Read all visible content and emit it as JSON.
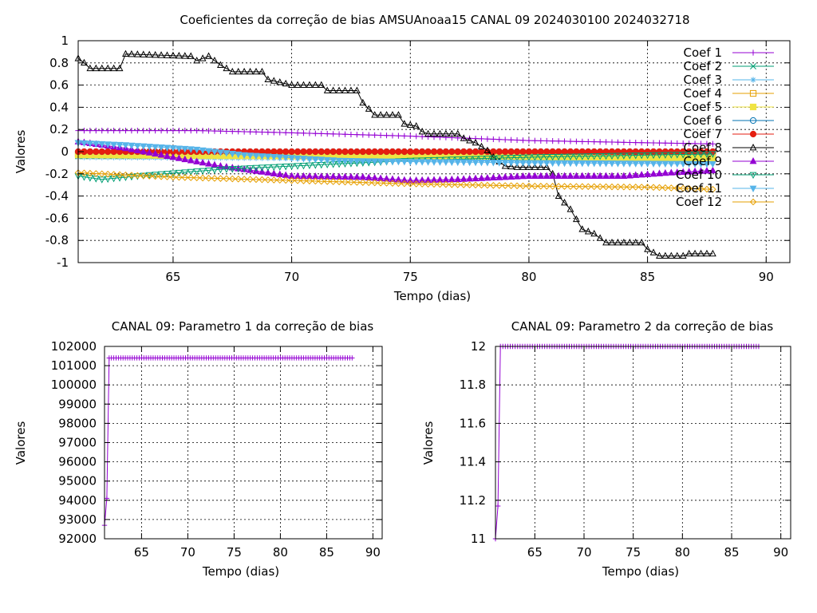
{
  "chart_data": [
    {
      "type": "line",
      "title": "Coeficientes da correção de bias AMSUAnoaa15 CANAL 09 2024030100 2024032718",
      "xlabel": "Tempo (dias)",
      "ylabel": "Valores",
      "xlim": [
        61,
        91
      ],
      "ylim": [
        -1,
        1
      ],
      "xticks": [
        "65",
        "70",
        "75",
        "80",
        "85",
        "90"
      ],
      "yticks": [
        "-1",
        "-0.8",
        "-0.6",
        "-0.4",
        "-0.2",
        "0",
        "0.2",
        "0.4",
        "0.6",
        "0.8",
        "1"
      ],
      "grid": true,
      "legend_position": "top-right",
      "x_start": 61,
      "x_end": 87.75,
      "x_step": 0.25,
      "series": [
        {
          "name": "Coef 1",
          "color": "#9400d3",
          "marker": "plus",
          "keypoints": [
            [
              61,
              0.19
            ],
            [
              66,
              0.19
            ],
            [
              70,
              0.17
            ],
            [
              75,
              0.14
            ],
            [
              80,
              0.1
            ],
            [
              85,
              0.08
            ],
            [
              87.75,
              0.07
            ]
          ]
        },
        {
          "name": "Coef 2",
          "color": "#009e73",
          "marker": "cross",
          "keypoints": [
            [
              61,
              -0.04
            ],
            [
              75,
              -0.04
            ],
            [
              80,
              -0.03
            ],
            [
              87.75,
              -0.03
            ]
          ]
        },
        {
          "name": "Coef 3",
          "color": "#56b4e9",
          "marker": "star",
          "keypoints": [
            [
              61,
              -0.05
            ],
            [
              70,
              -0.06
            ],
            [
              80,
              -0.07
            ],
            [
              87.75,
              -0.08
            ]
          ]
        },
        {
          "name": "Coef 4",
          "color": "#e69f00",
          "marker": "square-open",
          "keypoints": [
            [
              61,
              -0.02
            ],
            [
              80,
              -0.03
            ],
            [
              87.75,
              -0.04
            ]
          ]
        },
        {
          "name": "Coef 5",
          "color": "#f0e442",
          "marker": "square-filled",
          "keypoints": [
            [
              61,
              -0.03
            ],
            [
              70,
              -0.04
            ],
            [
              80,
              -0.05
            ],
            [
              87.75,
              -0.06
            ]
          ]
        },
        {
          "name": "Coef 6",
          "color": "#0072b2",
          "marker": "circle-open",
          "keypoints": [
            [
              61,
              0.0
            ],
            [
              87.75,
              0.0
            ]
          ]
        },
        {
          "name": "Coef 7",
          "color": "#e51e10",
          "marker": "circle-filled",
          "keypoints": [
            [
              61,
              0.0
            ],
            [
              87.75,
              0.0
            ]
          ]
        },
        {
          "name": "Coef 8",
          "color": "#000000",
          "marker": "triangle-open",
          "keypoints": [
            [
              61,
              0.84
            ],
            [
              61.25,
              0.8
            ],
            [
              61.5,
              0.75
            ],
            [
              62.75,
              0.75
            ],
            [
              63,
              0.88
            ],
            [
              65.75,
              0.86
            ],
            [
              66,
              0.82
            ],
            [
              66.5,
              0.86
            ],
            [
              67,
              0.78
            ],
            [
              67.5,
              0.72
            ],
            [
              68.75,
              0.72
            ],
            [
              69,
              0.65
            ],
            [
              70,
              0.6
            ],
            [
              71.25,
              0.6
            ],
            [
              71.5,
              0.55
            ],
            [
              72.75,
              0.55
            ],
            [
              73,
              0.44
            ],
            [
              73.5,
              0.33
            ],
            [
              74.5,
              0.33
            ],
            [
              74.75,
              0.25
            ],
            [
              75.25,
              0.23
            ],
            [
              75.5,
              0.18
            ],
            [
              75.75,
              0.16
            ],
            [
              77,
              0.16
            ],
            [
              77.25,
              0.12
            ],
            [
              77.75,
              0.08
            ],
            [
              78.25,
              0.01
            ],
            [
              78.5,
              -0.05
            ],
            [
              79,
              -0.13
            ],
            [
              79.5,
              -0.14
            ],
            [
              80.75,
              -0.14
            ],
            [
              81,
              -0.2
            ],
            [
              81.25,
              -0.4
            ],
            [
              81.75,
              -0.52
            ],
            [
              82.25,
              -0.7
            ],
            [
              82.75,
              -0.74
            ],
            [
              83.25,
              -0.82
            ],
            [
              84.75,
              -0.82
            ],
            [
              85,
              -0.88
            ],
            [
              85.5,
              -0.94
            ],
            [
              86.5,
              -0.94
            ],
            [
              86.75,
              -0.92
            ],
            [
              87.75,
              -0.92
            ]
          ]
        },
        {
          "name": "Coef 9",
          "color": "#9400d3",
          "marker": "triangle-filled",
          "keypoints": [
            [
              61,
              0.09
            ],
            [
              63,
              0.03
            ],
            [
              65,
              -0.05
            ],
            [
              67,
              -0.13
            ],
            [
              70,
              -0.22
            ],
            [
              73,
              -0.23
            ],
            [
              75,
              -0.26
            ],
            [
              77,
              -0.25
            ],
            [
              80,
              -0.22
            ],
            [
              84,
              -0.22
            ],
            [
              86,
              -0.19
            ],
            [
              87.75,
              -0.17
            ]
          ]
        },
        {
          "name": "Coef 10",
          "color": "#009e73",
          "marker": "triangle-down-open",
          "keypoints": [
            [
              61,
              -0.22
            ],
            [
              62,
              -0.25
            ],
            [
              64,
              -0.21
            ],
            [
              67,
              -0.16
            ],
            [
              71,
              -0.12
            ],
            [
              75,
              -0.08
            ],
            [
              80,
              -0.05
            ],
            [
              87.75,
              -0.02
            ]
          ]
        },
        {
          "name": "Coef 11",
          "color": "#56b4e9",
          "marker": "triangle-down-filled",
          "keypoints": [
            [
              61,
              0.08
            ],
            [
              63,
              0.06
            ],
            [
              66,
              0.02
            ],
            [
              68,
              -0.03
            ],
            [
              72,
              -0.08
            ],
            [
              75,
              -0.09
            ],
            [
              80,
              -0.1
            ],
            [
              87.75,
              -0.11
            ]
          ]
        },
        {
          "name": "Coef 12",
          "color": "#e69f00",
          "marker": "diamond-open",
          "keypoints": [
            [
              61,
              -0.19
            ],
            [
              65,
              -0.23
            ],
            [
              70,
              -0.26
            ],
            [
              75,
              -0.29
            ],
            [
              80,
              -0.31
            ],
            [
              85,
              -0.32
            ],
            [
              87.75,
              -0.34
            ]
          ]
        }
      ]
    },
    {
      "type": "line",
      "title": "CANAL 09: Parametro 1 da correção de bias",
      "xlabel": "Tempo (dias)",
      "ylabel": "Valores",
      "xlim": [
        61,
        91
      ],
      "ylim": [
        92000,
        102000
      ],
      "xticks": [
        "65",
        "70",
        "75",
        "80",
        "85",
        "90"
      ],
      "yticks": [
        "92000",
        "93000",
        "94000",
        "95000",
        "96000",
        "97000",
        "98000",
        "99000",
        "100000",
        "101000",
        "102000"
      ],
      "grid": true,
      "x_start": 61,
      "x_end": 87.75,
      "x_step": 0.25,
      "series": [
        {
          "name": "Parametro 1",
          "color": "#9400d3",
          "marker": "plus",
          "keypoints": [
            [
              61,
              92700
            ],
            [
              61.25,
              94100
            ],
            [
              61.5,
              101400
            ],
            [
              87.75,
              101400
            ]
          ]
        }
      ]
    },
    {
      "type": "line",
      "title": "CANAL 09: Parametro 2 da correção de bias",
      "xlabel": "Tempo (dias)",
      "ylabel": "Valores",
      "xlim": [
        61,
        91
      ],
      "ylim": [
        11,
        12
      ],
      "xticks": [
        "65",
        "70",
        "75",
        "80",
        "85",
        "90"
      ],
      "yticks": [
        "11",
        "11.2",
        "11.4",
        "11.6",
        "11.8",
        "12"
      ],
      "grid": true,
      "x_start": 61,
      "x_end": 87.75,
      "x_step": 0.25,
      "series": [
        {
          "name": "Parametro 2",
          "color": "#9400d3",
          "marker": "plus",
          "keypoints": [
            [
              61,
              11.0
            ],
            [
              61.25,
              11.17
            ],
            [
              61.5,
              12.0
            ],
            [
              87.75,
              12.0
            ]
          ]
        }
      ]
    }
  ]
}
